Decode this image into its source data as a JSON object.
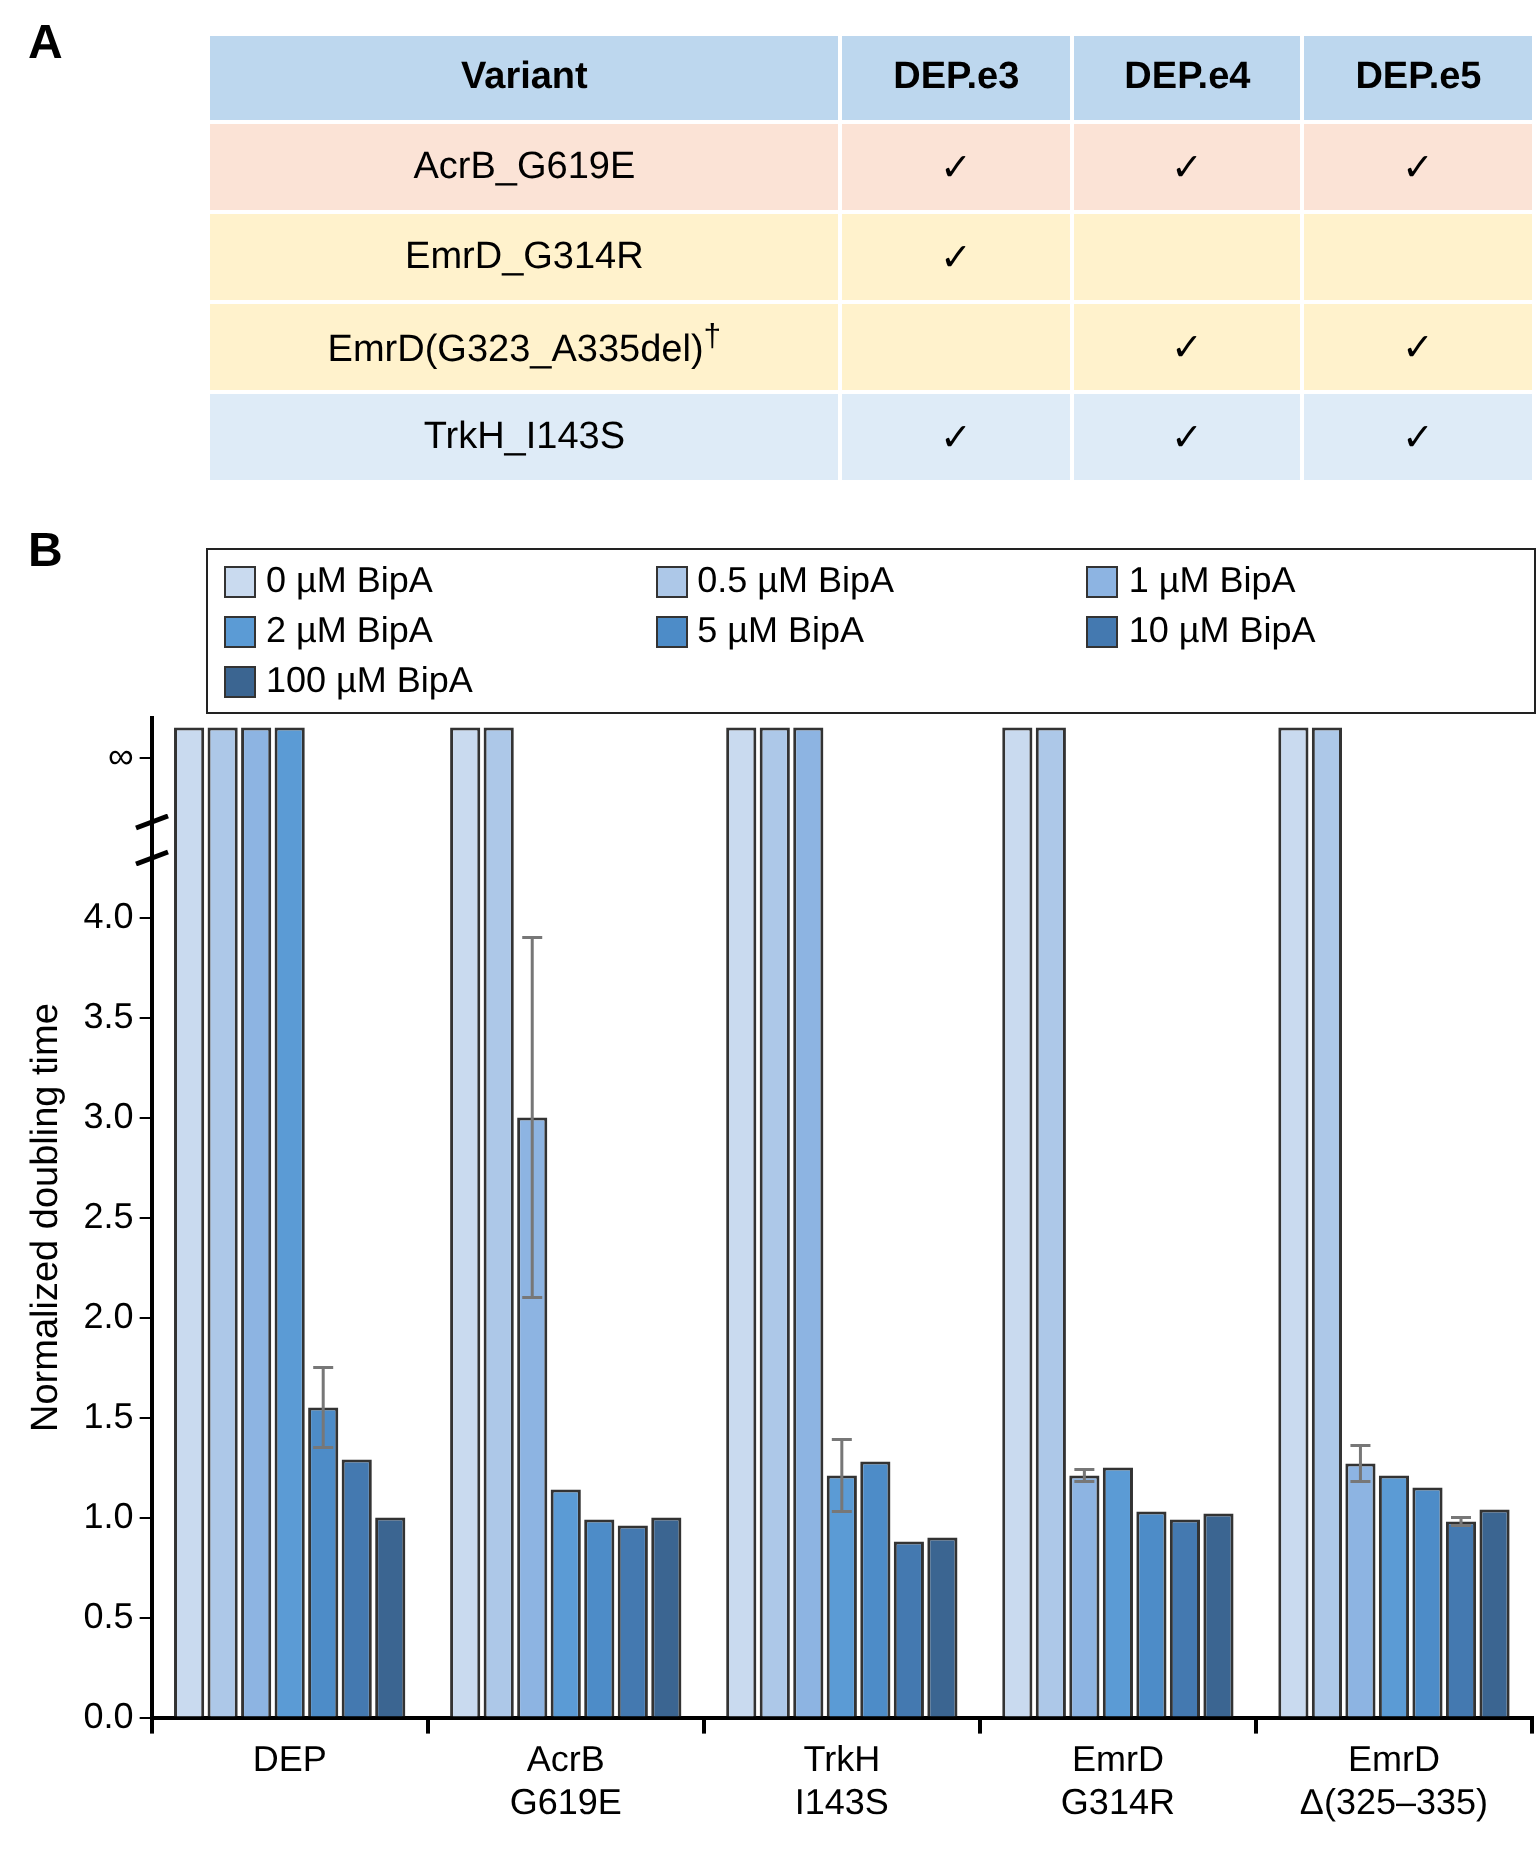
{
  "chart_data": [
    {
      "type": "other",
      "title": "A",
      "categories": [
        "Variant",
        "DEP.e3",
        "DEP.e4",
        "DEP.e5"
      ],
      "y_categories": [
        "AcrB_G619E",
        "EmrD_G314R",
        "EmrD(G323_A335del)$^{†}$",
        "TrkH_I143S"
      ],
      "cell_labels": [
        [
          "✓",
          "✓",
          "✓"
        ],
        [
          "✓",
          null,
          null
        ],
        [
          null,
          "✓",
          "✓"
        ],
        [
          "✓",
          "✓",
          "✓"
        ]
      ],
      "colors": [
        "#bdd7ee",
        "#bdd7ee",
        "#bdd7ee",
        "#bdd7ee"
      ]
    },
    {
      "type": "bar",
      "title": "B",
      "ylabel": "Normalized doubling time",
      "categories": [
        "DEP",
        "AcrB G619E",
        "TrkH I143S",
        "EmrD G314R",
        "EmrD Δ(325–335)"
      ],
      "ylim": [
        0,
        5
      ],
      "yticks": [
        {
          "value": 0,
          "label": "0.0"
        },
        {
          "value": 0.5,
          "label": "0.5"
        },
        {
          "value": 1,
          "label": "1.0"
        },
        {
          "value": 1.5,
          "label": "1.5"
        },
        {
          "value": 2,
          "label": "2.0"
        },
        {
          "value": 2.5,
          "label": "2.5"
        },
        {
          "value": 3,
          "label": "3.0"
        },
        {
          "value": 3.5,
          "label": "3.5"
        },
        {
          "value": 4,
          "label": "4.0"
        },
        {
          "value": 4.8,
          "label": "∞"
        }
      ],
      "grid": false,
      "legend": "top",
      "series": [
        {
          "name": "0 µM BipA",
          "color": "#c9daef",
          "values": [
            4.95,
            4.95,
            4.95,
            4.95,
            4.95
          ]
        },
        {
          "name": "0.5 µM BipA",
          "color": "#adc8e8",
          "values": [
            4.95,
            4.95,
            4.95,
            4.95,
            4.95
          ]
        },
        {
          "name": "1 µM BipA",
          "color": "#8db4e2",
          "values": [
            4.95,
            3.0,
            4.95,
            1.21,
            1.27
          ],
          "errors": [
            null,
            0.9,
            null,
            0.03,
            0.09
          ]
        },
        {
          "name": "2 µM BipA",
          "color": "#5b9bd5",
          "values": [
            4.95,
            1.14,
            1.21,
            1.25,
            1.21
          ],
          "errors": [
            null,
            null,
            0.18,
            null,
            null
          ]
        },
        {
          "name": "5 µM BipA",
          "color": "#4d8cc8",
          "values": [
            1.55,
            0.99,
            1.28,
            1.03,
            1.15
          ],
          "errors": [
            0.2,
            null,
            null,
            null,
            null
          ]
        },
        {
          "name": "10 µM BipA",
          "color": "#4479b0",
          "values": [
            1.29,
            0.96,
            0.88,
            0.99,
            0.98
          ],
          "errors": [
            null,
            null,
            null,
            null,
            0.02
          ]
        },
        {
          "name": "100 µM BipA",
          "color": "#3b6591",
          "values": [
            1.0,
            1.0,
            0.9,
            1.02,
            1.04
          ]
        }
      ]
    }
  ]
}
